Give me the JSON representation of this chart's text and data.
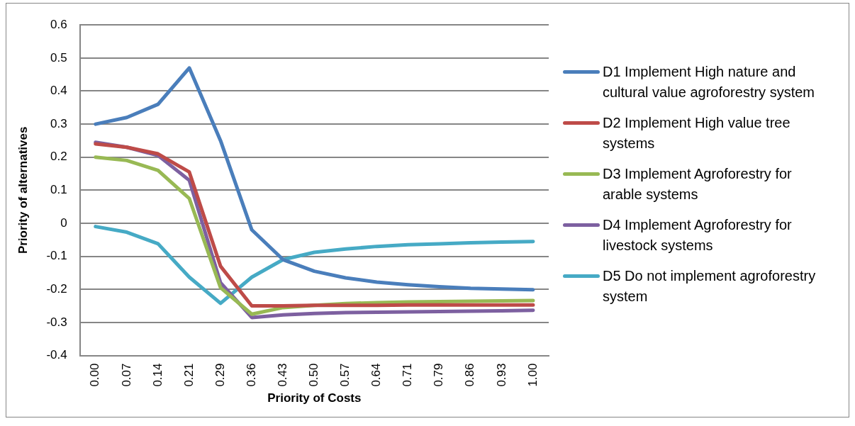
{
  "chart_data": {
    "type": "line",
    "xlabel": "Priority of Costs",
    "ylabel": "Priority of alternatives",
    "categories": [
      "0.00",
      "0.07",
      "0.14",
      "0.21",
      "0.29",
      "0.36",
      "0.43",
      "0.50",
      "0.57",
      "0.64",
      "0.71",
      "0.79",
      "0.86",
      "0.93",
      "1.00"
    ],
    "ylim": [
      -0.4,
      0.6
    ],
    "yticks": [
      -0.4,
      -0.3,
      -0.2,
      -0.1,
      0,
      0.1,
      0.2,
      0.3,
      0.4,
      0.5,
      0.6
    ],
    "grid": "y",
    "legend": "right",
    "marker": "none",
    "line_style": "solid",
    "series": [
      {
        "name": "D1 Implement High nature and cultural value agroforestry system",
        "color": "#4a7ebb",
        "values": [
          0.3,
          0.32,
          0.36,
          0.47,
          0.25,
          -0.02,
          -0.11,
          -0.145,
          -0.165,
          -0.178,
          -0.186,
          -0.192,
          -0.197,
          -0.199,
          -0.201
        ]
      },
      {
        "name": "D2 Implement High value tree systems",
        "color": "#be4b48",
        "values": [
          0.24,
          0.23,
          0.21,
          0.155,
          -0.13,
          -0.25,
          -0.25,
          -0.248,
          -0.248,
          -0.248,
          -0.247,
          -0.247,
          -0.247,
          -0.247,
          -0.247
        ]
      },
      {
        "name": "D3 Implement Agroforestry for arable systems",
        "color": "#98b954",
        "values": [
          0.2,
          0.19,
          0.16,
          0.075,
          -0.195,
          -0.275,
          -0.255,
          -0.248,
          -0.243,
          -0.24,
          -0.238,
          -0.237,
          -0.236,
          -0.235,
          -0.234
        ]
      },
      {
        "name": "D4 Implement Agroforestry for livestock systems",
        "color": "#7d60a0",
        "values": [
          0.245,
          0.23,
          0.205,
          0.13,
          -0.18,
          -0.285,
          -0.277,
          -0.273,
          -0.27,
          -0.269,
          -0.268,
          -0.267,
          -0.266,
          -0.265,
          -0.263
        ]
      },
      {
        "name": "D5 Do not implement agroforestry system",
        "color": "#46aac5",
        "values": [
          -0.01,
          -0.027,
          -0.062,
          -0.163,
          -0.242,
          -0.163,
          -0.11,
          -0.088,
          -0.078,
          -0.07,
          -0.065,
          -0.062,
          -0.059,
          -0.057,
          -0.055
        ]
      }
    ]
  }
}
